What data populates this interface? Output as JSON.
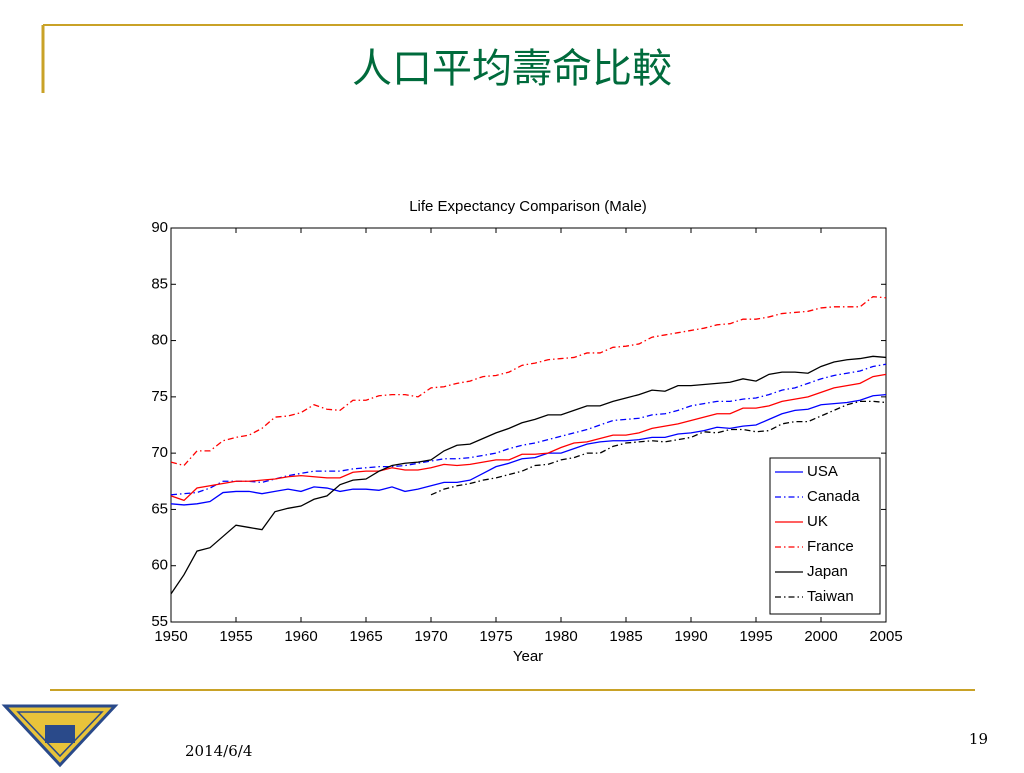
{
  "slide": {
    "title": "人口平均壽命比較",
    "date": "2014/6/4",
    "page": "19"
  },
  "chart_data": {
    "type": "line",
    "title": "Life Expectancy Comparison (Male)",
    "xlabel": "Year",
    "x": [
      1950,
      1951,
      1952,
      1953,
      1954,
      1955,
      1956,
      1957,
      1958,
      1959,
      1960,
      1961,
      1962,
      1963,
      1964,
      1965,
      1966,
      1967,
      1968,
      1969,
      1970,
      1971,
      1972,
      1973,
      1974,
      1975,
      1976,
      1977,
      1978,
      1979,
      1980,
      1981,
      1982,
      1983,
      1984,
      1985,
      1986,
      1987,
      1988,
      1989,
      1990,
      1991,
      1992,
      1993,
      1994,
      1995,
      1996,
      1997,
      1998,
      1999,
      2000,
      2001,
      2002,
      2003,
      2004,
      2005
    ],
    "series": [
      {
        "name": "USA",
        "color": "#0000ff",
        "dash": "solid",
        "values": [
          65.5,
          65.4,
          65.5,
          65.7,
          66.5,
          66.6,
          66.6,
          66.4,
          66.6,
          66.8,
          66.6,
          67.0,
          66.9,
          66.6,
          66.8,
          66.8,
          66.7,
          67.0,
          66.6,
          66.8,
          67.1,
          67.4,
          67.4,
          67.6,
          68.2,
          68.8,
          69.1,
          69.5,
          69.6,
          70.0,
          70.0,
          70.4,
          70.8,
          71.0,
          71.1,
          71.1,
          71.2,
          71.4,
          71.4,
          71.7,
          71.8,
          72.0,
          72.3,
          72.2,
          72.4,
          72.5,
          73.0,
          73.5,
          73.8,
          73.9,
          74.3,
          74.4,
          74.5,
          74.7,
          75.1,
          75.2
        ]
      },
      {
        "name": "Canada",
        "color": "#0000ff",
        "dash": "dashdot",
        "values": [
          66.3,
          66.4,
          66.5,
          66.9,
          67.5,
          67.5,
          67.5,
          67.4,
          67.7,
          68.0,
          68.2,
          68.4,
          68.4,
          68.4,
          68.6,
          68.7,
          68.8,
          68.8,
          68.9,
          69.1,
          69.3,
          69.5,
          69.5,
          69.6,
          69.8,
          70.0,
          70.4,
          70.7,
          70.9,
          71.2,
          71.5,
          71.8,
          72.1,
          72.5,
          72.9,
          73.0,
          73.1,
          73.4,
          73.5,
          73.8,
          74.2,
          74.4,
          74.6,
          74.6,
          74.8,
          74.9,
          75.2,
          75.6,
          75.8,
          76.2,
          76.6,
          76.9,
          77.1,
          77.3,
          77.7,
          77.9
        ]
      },
      {
        "name": "UK",
        "color": "#ff0000",
        "dash": "solid",
        "values": [
          66.2,
          65.8,
          66.9,
          67.1,
          67.3,
          67.5,
          67.5,
          67.6,
          67.7,
          67.9,
          68.0,
          67.9,
          67.8,
          67.8,
          68.3,
          68.4,
          68.4,
          68.7,
          68.5,
          68.5,
          68.7,
          69.0,
          68.9,
          69.0,
          69.2,
          69.4,
          69.4,
          69.9,
          69.9,
          70.0,
          70.5,
          70.9,
          71.0,
          71.3,
          71.6,
          71.6,
          71.8,
          72.2,
          72.4,
          72.6,
          72.9,
          73.2,
          73.5,
          73.5,
          74.0,
          74.0,
          74.2,
          74.6,
          74.8,
          75.0,
          75.4,
          75.8,
          76.0,
          76.2,
          76.8,
          77.0
        ]
      },
      {
        "name": "France",
        "color": "#ff0000",
        "dash": "dashdot",
        "values": [
          69.2,
          68.9,
          70.2,
          70.2,
          71.1,
          71.4,
          71.6,
          72.2,
          73.2,
          73.3,
          73.6,
          74.3,
          73.9,
          73.8,
          74.7,
          74.7,
          75.1,
          75.2,
          75.2,
          75.0,
          75.8,
          75.9,
          76.2,
          76.4,
          76.8,
          76.9,
          77.2,
          77.8,
          78.0,
          78.3,
          78.4,
          78.5,
          78.9,
          78.9,
          79.4,
          79.5,
          79.7,
          80.3,
          80.5,
          80.7,
          80.9,
          81.1,
          81.4,
          81.5,
          81.9,
          81.9,
          82.1,
          82.4,
          82.5,
          82.6,
          82.9,
          83.0,
          83.0,
          83.0,
          83.9,
          83.8
        ]
      },
      {
        "name": "Japan",
        "color": "#000000",
        "dash": "solid",
        "values": [
          57.5,
          59.2,
          61.3,
          61.6,
          62.6,
          63.6,
          63.4,
          63.2,
          64.8,
          65.1,
          65.3,
          65.9,
          66.2,
          67.2,
          67.6,
          67.7,
          68.4,
          68.9,
          69.1,
          69.2,
          69.4,
          70.2,
          70.7,
          70.8,
          71.3,
          71.8,
          72.2,
          72.7,
          73.0,
          73.4,
          73.4,
          73.8,
          74.2,
          74.2,
          74.6,
          74.9,
          75.2,
          75.6,
          75.5,
          76.0,
          76.0,
          76.1,
          76.2,
          76.3,
          76.6,
          76.4,
          77.0,
          77.2,
          77.2,
          77.1,
          77.7,
          78.1,
          78.3,
          78.4,
          78.6,
          78.5
        ]
      },
      {
        "name": "Taiwan",
        "color": "#000000",
        "dash": "dashdot",
        "values": [
          null,
          null,
          null,
          null,
          null,
          null,
          null,
          null,
          null,
          null,
          null,
          null,
          null,
          null,
          null,
          null,
          null,
          null,
          null,
          null,
          66.3,
          66.8,
          67.1,
          67.3,
          67.6,
          67.8,
          68.1,
          68.4,
          68.9,
          69.0,
          69.4,
          69.6,
          70.0,
          70.0,
          70.6,
          70.9,
          71.0,
          71.1,
          71.0,
          71.2,
          71.4,
          71.9,
          71.8,
          72.1,
          72.1,
          71.9,
          72.0,
          72.6,
          72.8,
          72.8,
          73.3,
          73.8,
          74.3,
          74.6,
          74.6,
          74.5
        ]
      }
    ],
    "xlim": [
      1950,
      2005
    ],
    "xticks": [
      1950,
      1955,
      1960,
      1965,
      1970,
      1975,
      1980,
      1985,
      1990,
      1995,
      2000,
      2005
    ],
    "ylim": [
      55,
      90
    ],
    "yticks": [
      55,
      60,
      65,
      70,
      75,
      80,
      85,
      90
    ],
    "legend": "lower right",
    "grid": false
  }
}
